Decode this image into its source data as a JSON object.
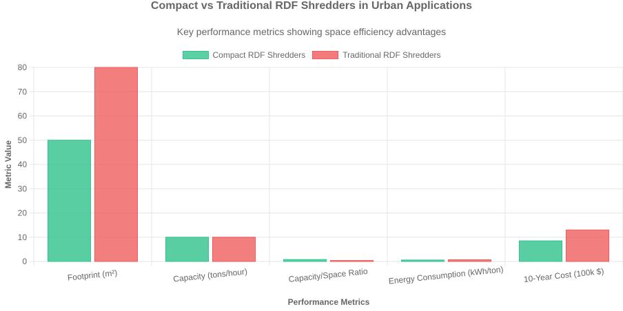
{
  "chart_data": {
    "type": "bar",
    "title": "Compact vs Traditional RDF Shredders in Urban Applications",
    "subtitle": "Key performance metrics showing space efficiency advantages",
    "xlabel": "Performance Metrics",
    "ylabel": "Metric Value",
    "categories": [
      "Footprint (m²)",
      "Capacity (tons/hour)",
      "Capacity/Space Ratio",
      "Energy Consumption (kWh/ton)",
      "10-Year Cost (100k $)"
    ],
    "series": [
      {
        "name": "Compact RDF Shredders",
        "values": [
          50,
          10,
          0.8,
          0.6,
          8.5
        ],
        "color": "#34c38f"
      },
      {
        "name": "Traditional RDF Shredders",
        "values": [
          80,
          10,
          0.4,
          0.7,
          13
        ],
        "color": "#f05a5a"
      }
    ],
    "ylim": [
      0,
      80
    ],
    "yticks": [
      0,
      10,
      20,
      30,
      40,
      50,
      60,
      70,
      80
    ],
    "grid": true,
    "legend": "top-center"
  }
}
